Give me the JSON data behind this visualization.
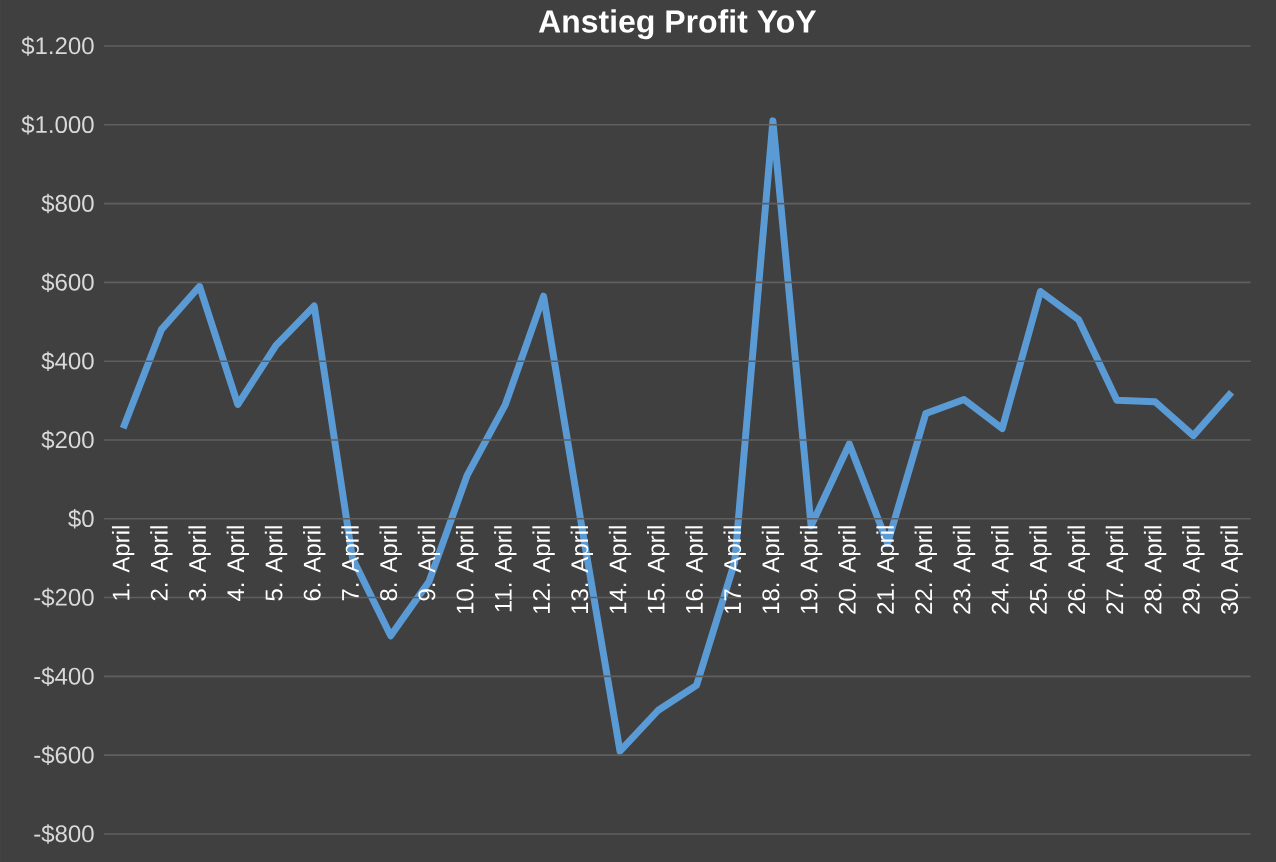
{
  "chart_data": {
    "type": "line",
    "title": "Anstieg Profit YoY",
    "categories": [
      "1. April",
      "2. April",
      "3. April",
      "4. April",
      "5. April",
      "6. April",
      "7. April",
      "8. April",
      "9. April",
      "10. April",
      "11. April",
      "12. April",
      "13. April",
      "14. April",
      "15. April",
      "16. April",
      "17. April",
      "18. April",
      "19. April",
      "20. April",
      "21. April",
      "22. April",
      "23. April",
      "24. April",
      "25. April",
      "26. April",
      "27. April",
      "28. April",
      "29. April",
      "30. April"
    ],
    "series": [
      {
        "color": "#5b9bd5",
        "values": [
          230,
          480,
          590,
          290,
          440,
          540,
          -100,
          -297,
          -160,
          110,
          290,
          565,
          -20,
          -590,
          -486,
          -423,
          -110,
          1010,
          -18,
          190,
          -63,
          267,
          303,
          229,
          577,
          505,
          301,
          297,
          211,
          321
        ]
      }
    ],
    "ylim": [
      -800,
      1200
    ],
    "yticks": [
      {
        "value": -800,
        "label": "-$800"
      },
      {
        "value": -600,
        "label": "-$600"
      },
      {
        "value": -400,
        "label": "-$400"
      },
      {
        "value": -200,
        "label": "-$200"
      },
      {
        "value": 0,
        "label": "$0"
      },
      {
        "value": 200,
        "label": "$200"
      },
      {
        "value": 400,
        "label": "$400"
      },
      {
        "value": 600,
        "label": "$600"
      },
      {
        "value": 800,
        "label": "$800"
      },
      {
        "value": 1000,
        "label": "$1.000"
      },
      {
        "value": 1200,
        "label": "$1.200"
      }
    ],
    "grid": "y",
    "marker": "none",
    "line_style": "solid"
  }
}
